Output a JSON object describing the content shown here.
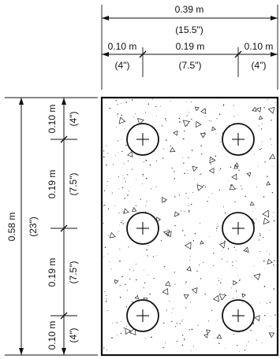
{
  "top_dims": {
    "overall": {
      "metric": "0.39 m",
      "imperial": "(15.5\")"
    },
    "left": {
      "metric": "0.10 m",
      "imperial": "(4\")"
    },
    "middle": {
      "metric": "0.19 m",
      "imperial": "(7.5\")"
    },
    "right": {
      "metric": "0.10 m",
      "imperial": "(4\")"
    }
  },
  "left_dims": {
    "overall": {
      "metric": "0.58 m",
      "imperial": "(23\")"
    },
    "segments": [
      {
        "metric": "0.10 m",
        "imperial": "(4\")"
      },
      {
        "metric": "0.19 m",
        "imperial": "(7.5\")"
      },
      {
        "metric": "0.19 m",
        "imperial": "(7.5\")"
      },
      {
        "metric": "0.10 m",
        "imperial": "(4\")"
      }
    ]
  },
  "section": {
    "bars": {
      "columns": 2,
      "rows": 3,
      "symbol": "circle-with-cross"
    },
    "fill": "concrete-stipple"
  },
  "colors": {
    "ink": "#111111",
    "paper": "#ffffff"
  }
}
